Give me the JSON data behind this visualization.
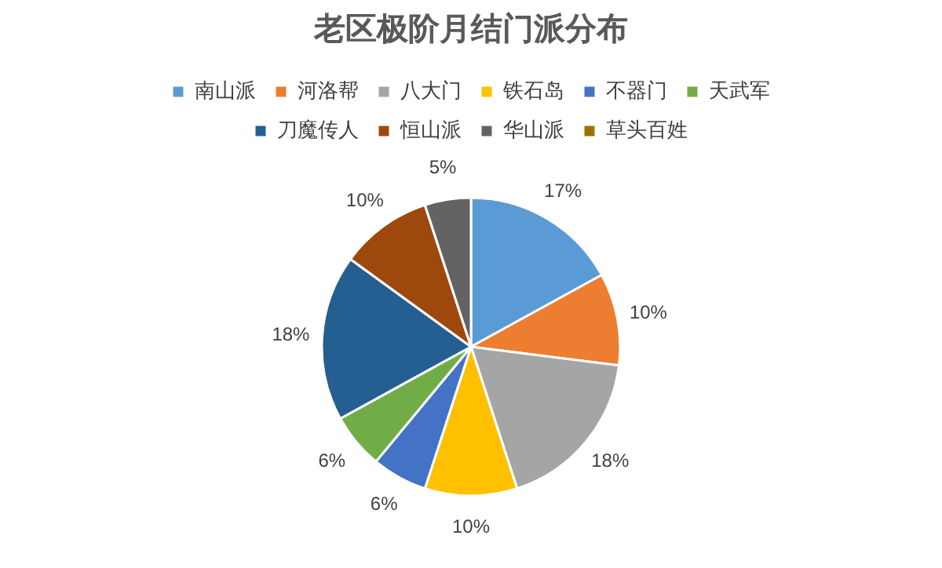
{
  "chart_data": {
    "type": "pie",
    "title": "老区极阶月结门派分布",
    "categories": [
      "南山派",
      "河洛帮",
      "八大门",
      "铁石岛",
      "不器门",
      "天武军",
      "刀魔传人",
      "恒山派",
      "华山派",
      "草头百姓"
    ],
    "values": [
      17,
      10,
      18,
      10,
      6,
      6,
      18,
      10,
      5,
      0
    ],
    "value_labels": [
      "17%",
      "10%",
      "18%",
      "10%",
      "6%",
      "6%",
      "18%",
      "10%",
      "5%",
      null
    ],
    "colors": [
      "#5b9bd5",
      "#ed7d31",
      "#a5a5a5",
      "#ffc000",
      "#4472c4",
      "#70ad47",
      "#255e91",
      "#9e480e",
      "#636363",
      "#997300"
    ],
    "legend": "top"
  }
}
